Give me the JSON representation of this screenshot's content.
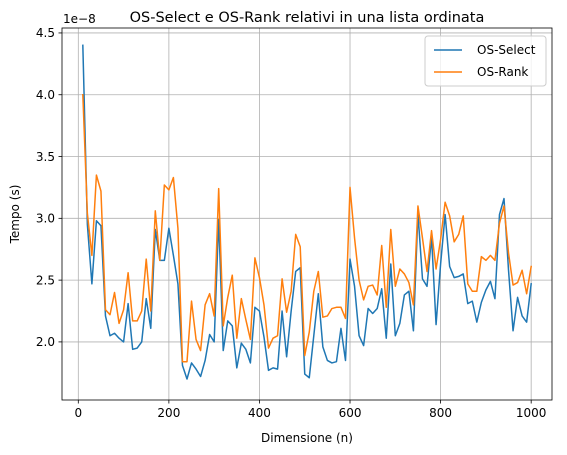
{
  "chart_data": {
    "type": "line",
    "title": "OS-Select e OS-Rank relativi in una lista ordinata",
    "xlabel": "Dimensione (n)",
    "ylabel": "Tempo (s)",
    "y_offset_label": "1e−8",
    "y_scale": 1e-08,
    "xlim": [
      -36,
      1046
    ],
    "ylim": [
      1.53,
      4.54
    ],
    "xticks": [
      0,
      200,
      400,
      600,
      800,
      1000
    ],
    "xtick_labels": [
      "0",
      "200",
      "400",
      "600",
      "800",
      "1000"
    ],
    "yticks": [
      2.0,
      2.5,
      3.0,
      3.5,
      4.0,
      4.5
    ],
    "ytick_labels": [
      "2.0",
      "2.5",
      "3.0",
      "3.5",
      "4.0",
      "4.5"
    ],
    "grid": true,
    "legend_position": "upper right",
    "x": [
      10,
      20,
      30,
      40,
      50,
      60,
      70,
      80,
      90,
      100,
      110,
      120,
      130,
      140,
      150,
      160,
      170,
      180,
      190,
      200,
      210,
      220,
      230,
      240,
      250,
      260,
      270,
      280,
      290,
      300,
      310,
      320,
      330,
      340,
      350,
      360,
      370,
      380,
      390,
      400,
      410,
      420,
      430,
      440,
      450,
      460,
      470,
      480,
      490,
      500,
      510,
      520,
      530,
      540,
      550,
      560,
      570,
      580,
      590,
      600,
      610,
      620,
      630,
      640,
      650,
      660,
      670,
      680,
      690,
      700,
      710,
      720,
      730,
      740,
      750,
      760,
      770,
      780,
      790,
      800,
      810,
      820,
      830,
      840,
      850,
      860,
      870,
      880,
      890,
      900,
      910,
      920,
      930,
      940,
      950,
      960,
      970,
      980,
      990,
      1000
    ],
    "series": [
      {
        "name": "OS-Select",
        "color": "#1f77b4",
        "values": [
          4.4,
          2.95,
          2.47,
          2.98,
          2.94,
          2.21,
          2.05,
          2.07,
          2.03,
          2.0,
          2.31,
          1.94,
          1.95,
          2.0,
          2.35,
          2.11,
          2.91,
          2.66,
          2.66,
          2.92,
          2.7,
          2.47,
          1.81,
          1.7,
          1.83,
          1.78,
          1.72,
          1.85,
          2.06,
          2.0,
          2.99,
          1.93,
          2.17,
          2.13,
          1.79,
          1.99,
          1.94,
          1.83,
          2.28,
          2.25,
          2.04,
          1.77,
          1.79,
          1.78,
          2.25,
          1.88,
          2.25,
          2.57,
          2.6,
          1.74,
          1.71,
          2.05,
          2.39,
          1.96,
          1.85,
          1.83,
          1.84,
          2.11,
          1.85,
          2.67,
          2.45,
          2.05,
          1.97,
          2.27,
          2.23,
          2.27,
          2.43,
          2.03,
          2.63,
          2.05,
          2.15,
          2.38,
          2.41,
          2.09,
          3.04,
          2.51,
          2.45,
          2.85,
          2.14,
          2.63,
          3.03,
          2.61,
          2.52,
          2.53,
          2.55,
          2.31,
          2.33,
          2.16,
          2.32,
          2.42,
          2.49,
          2.35,
          3.03,
          3.16,
          2.58,
          2.09,
          2.36,
          2.21,
          2.16,
          2.47
        ]
      },
      {
        "name": "OS-Rank",
        "color": "#ff7f0e",
        "values": [
          4.0,
          3.04,
          2.7,
          3.35,
          3.22,
          2.26,
          2.22,
          2.4,
          2.15,
          2.26,
          2.56,
          2.17,
          2.17,
          2.25,
          2.67,
          2.25,
          3.06,
          2.66,
          3.27,
          3.23,
          3.33,
          2.92,
          1.84,
          1.84,
          2.33,
          2.02,
          1.93,
          2.3,
          2.39,
          2.21,
          3.24,
          2.13,
          2.36,
          2.54,
          2.03,
          2.35,
          2.18,
          2.02,
          2.68,
          2.52,
          2.3,
          1.95,
          2.03,
          2.05,
          2.51,
          2.24,
          2.41,
          2.87,
          2.77,
          1.89,
          2.08,
          2.41,
          2.57,
          2.2,
          2.21,
          2.27,
          2.28,
          2.28,
          2.19,
          3.25,
          2.84,
          2.5,
          2.34,
          2.45,
          2.46,
          2.38,
          2.78,
          2.28,
          2.91,
          2.45,
          2.59,
          2.55,
          2.48,
          2.3,
          3.1,
          2.84,
          2.57,
          2.9,
          2.59,
          2.83,
          3.13,
          3.02,
          2.81,
          2.87,
          3.02,
          2.47,
          2.41,
          2.41,
          2.69,
          2.66,
          2.7,
          2.66,
          2.96,
          3.1,
          2.72,
          2.46,
          2.48,
          2.58,
          2.39,
          2.61
        ]
      }
    ]
  }
}
